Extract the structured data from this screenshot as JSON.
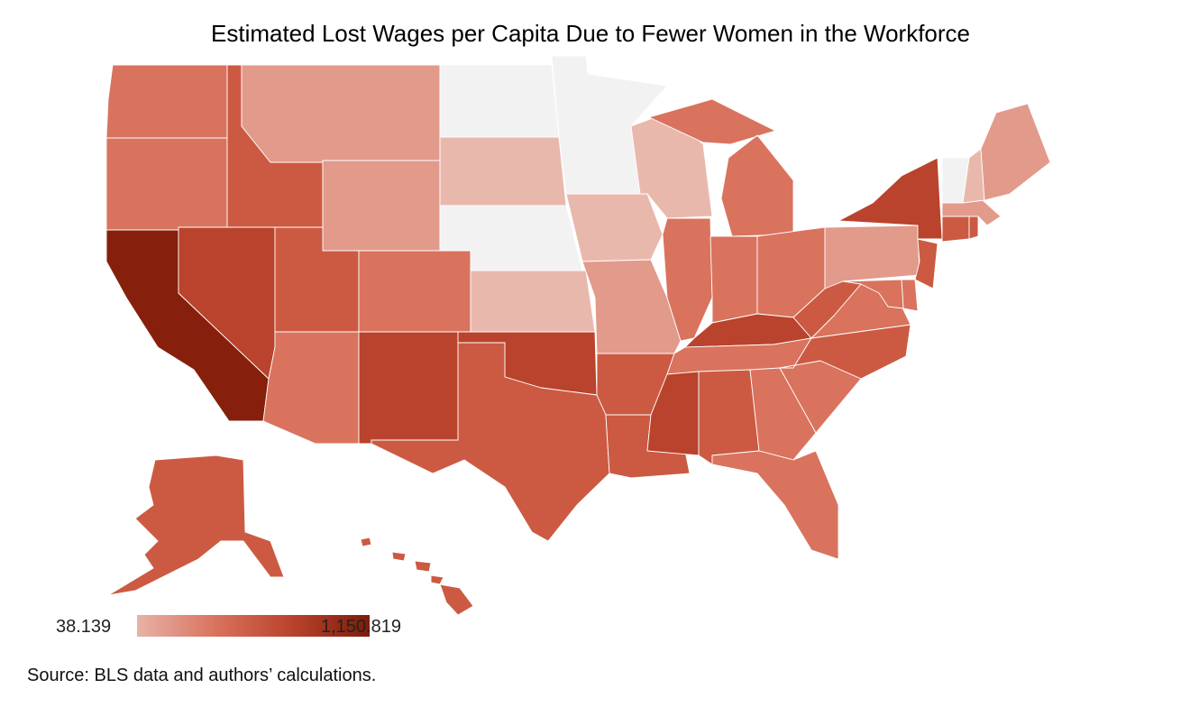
{
  "title": "Estimated Lost Wages per Capita Due to Fewer Women in the Workforce",
  "source": "Source: BLS data and authors’ calculations.",
  "legend": {
    "min_label": "38.139",
    "max_label": "1,150.819",
    "min_color": "#e8b2a7",
    "max_color": "#7d1c0a"
  },
  "colors": {
    "no_data": "#f2f2f2",
    "very_light": "#e9b8ad",
    "light": "#e29a8b",
    "medium": "#d9735e",
    "medium_dark": "#cc5a42",
    "dark": "#b9432c",
    "darkest": "#86200c"
  },
  "states": [
    {
      "id": "WA",
      "shade": "medium"
    },
    {
      "id": "OR",
      "shade": "medium"
    },
    {
      "id": "CA",
      "shade": "darkest"
    },
    {
      "id": "ID",
      "shade": "medium_dark"
    },
    {
      "id": "NV",
      "shade": "dark"
    },
    {
      "id": "MT",
      "shade": "light"
    },
    {
      "id": "WY",
      "shade": "light"
    },
    {
      "id": "UT",
      "shade": "medium_dark"
    },
    {
      "id": "AZ",
      "shade": "medium"
    },
    {
      "id": "CO",
      "shade": "medium"
    },
    {
      "id": "NM",
      "shade": "dark"
    },
    {
      "id": "ND",
      "shade": "no_data"
    },
    {
      "id": "SD",
      "shade": "very_light"
    },
    {
      "id": "NE",
      "shade": "no_data"
    },
    {
      "id": "KS",
      "shade": "very_light"
    },
    {
      "id": "OK",
      "shade": "dark"
    },
    {
      "id": "TX",
      "shade": "medium_dark"
    },
    {
      "id": "MN",
      "shade": "no_data"
    },
    {
      "id": "IA",
      "shade": "very_light"
    },
    {
      "id": "MO",
      "shade": "light"
    },
    {
      "id": "AR",
      "shade": "medium_dark"
    },
    {
      "id": "LA",
      "shade": "medium_dark"
    },
    {
      "id": "WI",
      "shade": "very_light"
    },
    {
      "id": "IL",
      "shade": "medium"
    },
    {
      "id": "MI",
      "shade": "medium"
    },
    {
      "id": "IN",
      "shade": "medium"
    },
    {
      "id": "OH",
      "shade": "medium"
    },
    {
      "id": "KY",
      "shade": "dark"
    },
    {
      "id": "TN",
      "shade": "medium"
    },
    {
      "id": "MS",
      "shade": "dark"
    },
    {
      "id": "AL",
      "shade": "medium_dark"
    },
    {
      "id": "GA",
      "shade": "medium"
    },
    {
      "id": "FL",
      "shade": "medium"
    },
    {
      "id": "SC",
      "shade": "medium"
    },
    {
      "id": "NC",
      "shade": "medium_dark"
    },
    {
      "id": "VA",
      "shade": "medium"
    },
    {
      "id": "WV",
      "shade": "medium_dark"
    },
    {
      "id": "PA",
      "shade": "light"
    },
    {
      "id": "NY",
      "shade": "dark"
    },
    {
      "id": "VT",
      "shade": "no_data"
    },
    {
      "id": "NH",
      "shade": "very_light"
    },
    {
      "id": "ME",
      "shade": "light"
    },
    {
      "id": "MA",
      "shade": "light"
    },
    {
      "id": "CT",
      "shade": "medium_dark"
    },
    {
      "id": "RI",
      "shade": "medium_dark"
    },
    {
      "id": "NJ",
      "shade": "medium_dark"
    },
    {
      "id": "DE",
      "shade": "medium"
    },
    {
      "id": "MD",
      "shade": "medium"
    },
    {
      "id": "AK",
      "shade": "medium_dark"
    },
    {
      "id": "HI",
      "shade": "medium_dark"
    }
  ]
}
